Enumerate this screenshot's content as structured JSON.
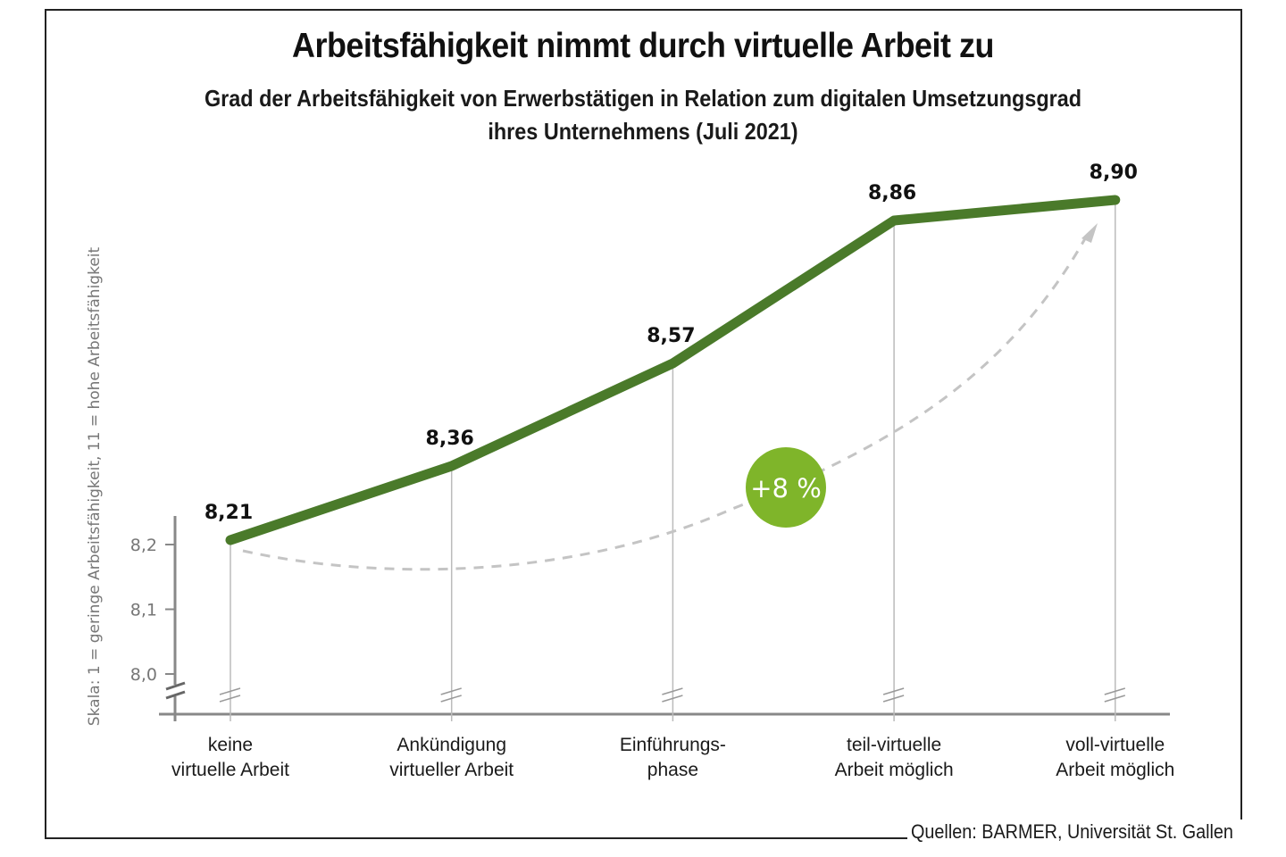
{
  "chart_data": {
    "type": "line",
    "title": "Arbeitsfähigkeit nimmt durch virtuelle Arbeit zu",
    "subtitle": [
      "Grad der Arbeitsfähigkeit von Erwerbstätigen in Relation zum digitalen Umsetzungsgrad",
      "ihres Unternehmens (Juli 2021)"
    ],
    "ylabel": "Skala: 1 = geringe Arbeitsfähigkeit, 11 = hohe Arbeitsfähigkeit",
    "xlabel": "",
    "y_ticks": [
      "8,0",
      "8,1",
      "8,2"
    ],
    "y_tick_values": [
      8.0,
      8.1,
      8.2
    ],
    "axis_break": true,
    "grid": false,
    "categories": [
      [
        "keine",
        "virtuelle Arbeit"
      ],
      [
        "Ankündigung",
        "virtueller Arbeit"
      ],
      [
        "Einführungs-",
        "phase"
      ],
      [
        "teil-virtuelle",
        "Arbeit möglich"
      ],
      [
        "voll-virtuelle",
        "Arbeit möglich"
      ]
    ],
    "series": [
      {
        "name": "Arbeitsfähigkeit",
        "values": [
          8.21,
          8.36,
          8.57,
          8.86,
          8.9
        ],
        "labels": [
          "8,21",
          "8,36",
          "8,57",
          "8,86",
          "8,90"
        ],
        "color": "#4a7a2a"
      }
    ],
    "annotations": [
      {
        "type": "trend-arrow",
        "style": "dashed",
        "color": "#c4c4c4",
        "from_category": 0,
        "to_category": 4
      },
      {
        "type": "badge",
        "text": "+8 %",
        "color": "#7fb52a",
        "text_color": "#ffffff"
      }
    ],
    "source": "Quellen: BARMER, Universität St. Gallen"
  },
  "colors": {
    "line": "#4a7a2a",
    "badge": "#7fb52a",
    "axis": "#888888",
    "guide": "#bbbbbb",
    "trend": "#c4c4c4",
    "frame": "#222222"
  }
}
